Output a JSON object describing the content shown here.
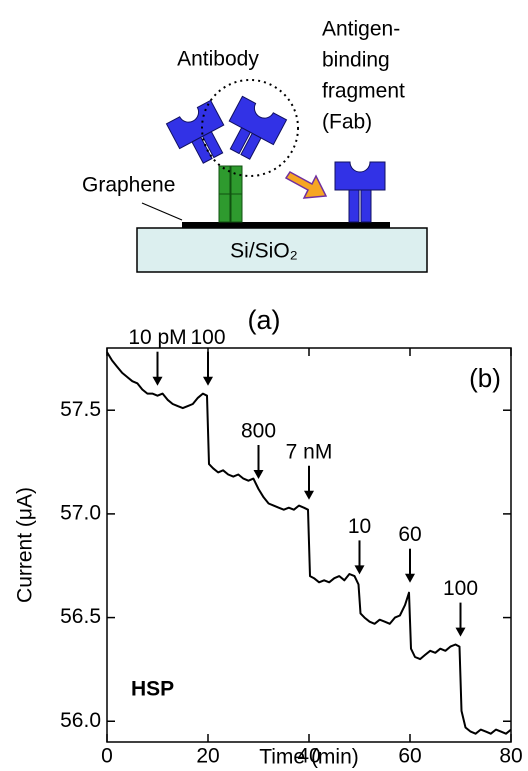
{
  "diagram": {
    "antibody": "Antibody",
    "fab": [
      "Antigen-",
      "binding",
      "fragment",
      "(Fab)"
    ],
    "graphene": "Graphene",
    "substrate": "Si/SiO₂",
    "panel_label": "(a)"
  },
  "chart_data": {
    "type": "line",
    "panel_label": "(b)",
    "inset_label": "HSP",
    "xlabel": "Time (min)",
    "ylabel": "Current (μA)",
    "color": "#000000",
    "x": [
      0,
      1,
      2,
      3,
      4,
      5,
      6,
      7,
      8,
      9,
      10,
      11,
      12,
      13,
      14,
      15,
      16,
      17,
      18,
      19,
      19.8,
      20.2,
      21,
      22,
      23,
      24,
      25,
      26,
      27,
      28,
      29,
      30,
      31,
      32,
      33,
      34,
      35,
      36,
      37,
      38,
      39,
      39.8,
      40.2,
      41,
      42,
      43,
      44,
      45,
      46,
      47,
      48,
      49,
      49.8,
      50.2,
      51,
      52,
      53,
      54,
      55,
      56,
      57,
      58,
      59,
      59.8,
      60.2,
      61,
      62,
      63,
      64,
      65,
      66,
      67,
      68,
      69,
      69.8,
      70.2,
      71,
      72,
      73,
      74,
      75,
      76,
      77,
      78,
      79,
      80
    ],
    "values": [
      57.78,
      57.74,
      57.71,
      57.68,
      57.66,
      57.64,
      57.63,
      57.6,
      57.58,
      57.58,
      57.57,
      57.58,
      57.55,
      57.53,
      57.52,
      57.51,
      57.52,
      57.53,
      57.56,
      57.58,
      57.57,
      57.24,
      57.22,
      57.2,
      57.21,
      57.19,
      57.18,
      57.19,
      57.17,
      57.16,
      57.17,
      57.12,
      57.08,
      57.05,
      57.04,
      57.03,
      57.02,
      57.03,
      57.02,
      57.04,
      57.03,
      57.02,
      56.7,
      56.69,
      56.67,
      56.68,
      56.67,
      56.69,
      56.7,
      56.68,
      56.71,
      56.7,
      56.66,
      56.52,
      56.5,
      56.48,
      56.47,
      56.49,
      56.48,
      56.47,
      56.5,
      56.51,
      56.56,
      56.62,
      56.35,
      56.31,
      56.3,
      56.32,
      56.34,
      56.33,
      56.35,
      56.34,
      56.36,
      56.37,
      56.36,
      56.05,
      55.97,
      55.95,
      55.94,
      55.96,
      55.95,
      55.94,
      55.96,
      55.95,
      55.94,
      55.96
    ],
    "annotations": [
      {
        "text": "10 pM",
        "x": 10
      },
      {
        "text": "100",
        "x": 20
      },
      {
        "text": "800",
        "x": 30
      },
      {
        "text": "7 nM",
        "x": 40
      },
      {
        "text": "10",
        "x": 50
      },
      {
        "text": "60",
        "x": 60
      },
      {
        "text": "100",
        "x": 70
      }
    ],
    "xlim": [
      0,
      80
    ],
    "xticks": [
      0,
      20,
      40,
      60,
      80
    ],
    "ylim": [
      55.9,
      57.8
    ],
    "yticks": [
      {
        "value": 56,
        "label": "56.0"
      },
      56.5,
      {
        "value": 57,
        "label": "57.0"
      },
      57.5
    ]
  }
}
